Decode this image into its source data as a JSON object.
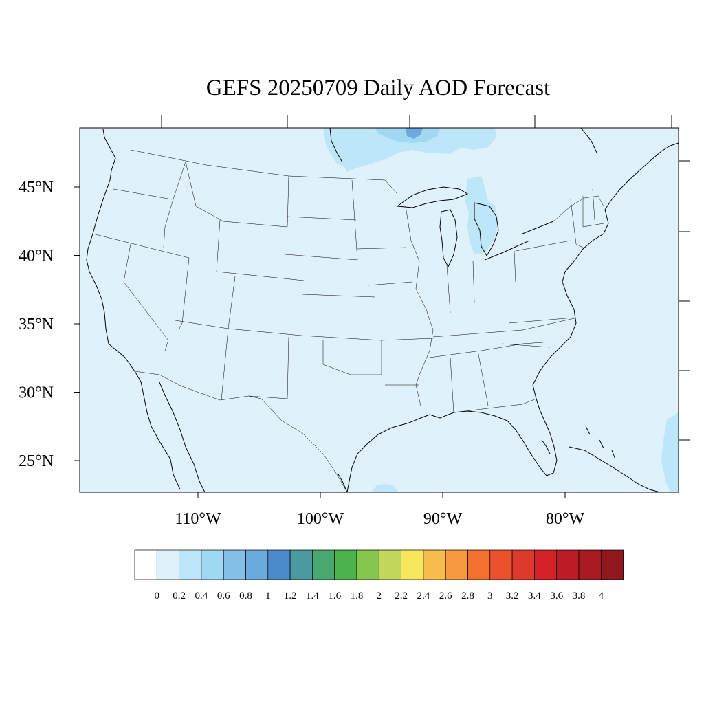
{
  "title": "GEFS 20250709 Daily AOD Forecast",
  "map": {
    "background_color": "#dff2fb",
    "lat_labels": [
      {
        "lat": 45,
        "label": "45°N"
      },
      {
        "lat": 40,
        "label": "40°N"
      },
      {
        "lat": 35,
        "label": "35°N"
      },
      {
        "lat": 30,
        "label": "30°N"
      },
      {
        "lat": 25,
        "label": "25°N"
      }
    ],
    "lon_labels": [
      {
        "lon": -110,
        "label": "110°W"
      },
      {
        "lon": -100,
        "label": "100°W"
      },
      {
        "lon": -90,
        "label": "90°W"
      },
      {
        "lon": -80,
        "label": "80°W"
      }
    ],
    "aod_features": [
      {
        "name": "hudson-bay-plume",
        "color": "#bde6f8"
      },
      {
        "name": "hudson-bay-core",
        "color": "#9fd8f3"
      },
      {
        "name": "hudson-bay-peak",
        "color": "#6aaadd"
      },
      {
        "name": "lake-michigan-huron",
        "color": "#bde6f8"
      },
      {
        "name": "atlantic-south",
        "color": "#bde6f8"
      },
      {
        "name": "gulf-south",
        "color": "#bde6f8"
      }
    ]
  },
  "colorbar": {
    "colors": [
      "#ffffff",
      "#dff2fb",
      "#bde6f8",
      "#9fd8f3",
      "#83bfe6",
      "#6aaadd",
      "#4a8cca",
      "#4a9ba0",
      "#48a870",
      "#4bb34a",
      "#86c54e",
      "#c2d65b",
      "#f6e75d",
      "#f7bd4c",
      "#f69a3d",
      "#f3712e",
      "#e9522d",
      "#de3a2b",
      "#d42228",
      "#bd1c25",
      "#a81b22",
      "#8e181d"
    ],
    "labels": [
      "0",
      "0.2",
      "0.4",
      "0.6",
      "0.8",
      "1",
      "1.2",
      "1.4",
      "1.6",
      "1.8",
      "2",
      "2.2",
      "2.4",
      "2.6",
      "2.8",
      "3",
      "3.2",
      "3.4",
      "3.6",
      "3.8",
      "4"
    ]
  }
}
